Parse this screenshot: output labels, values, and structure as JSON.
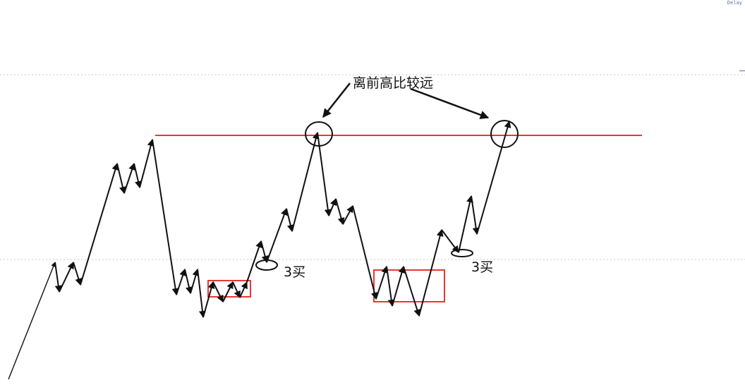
{
  "annotations": {
    "headline": "离前高比较远",
    "buy3_left": "3买",
    "buy3_right": "3买"
  },
  "corner_text": "Delay",
  "colors": {
    "resistance": "#e53935",
    "box": "#e53935",
    "arrow": "#111111",
    "guide": "#c8c8c8"
  }
}
